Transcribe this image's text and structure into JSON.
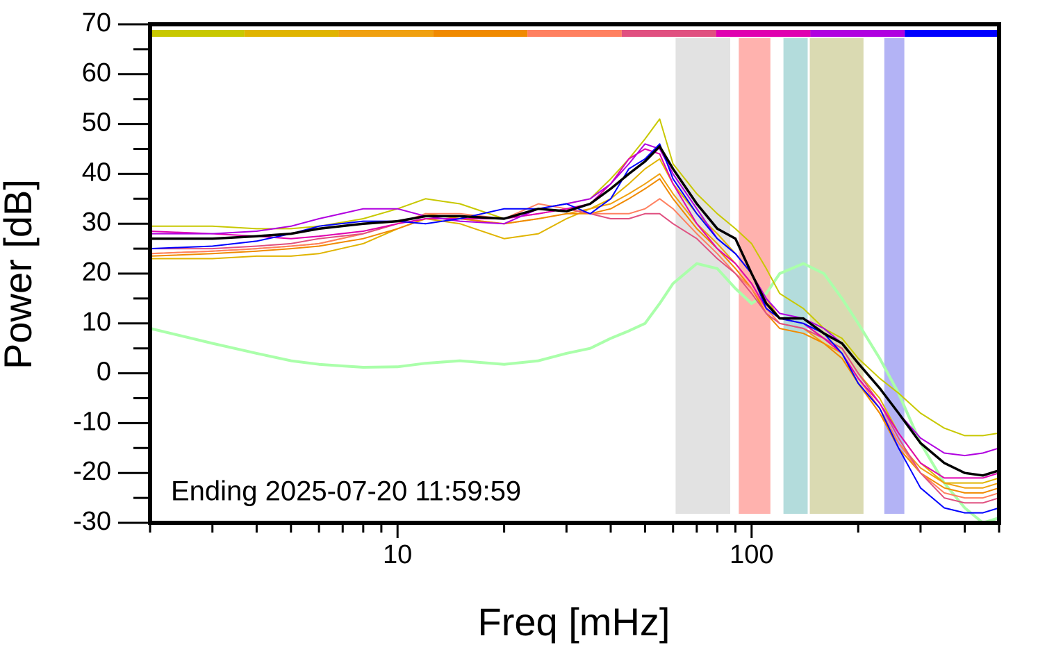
{
  "chart_data": {
    "type": "line",
    "xlabel": "Freq [mHz]",
    "ylabel": "Power [dB]",
    "annotation": "Ending 2025-07-20 11:59:59",
    "xscale": "log",
    "xlim": [
      2,
      500
    ],
    "ylim": [
      -30,
      70
    ],
    "xticks": [
      10,
      100
    ],
    "xminorticks": [
      2,
      3,
      4,
      5,
      6,
      7,
      8,
      9,
      20,
      30,
      40,
      50,
      60,
      70,
      80,
      90,
      200,
      300,
      400,
      500
    ],
    "yticks": [
      -30,
      -20,
      -10,
      0,
      10,
      20,
      30,
      40,
      50,
      60,
      70
    ],
    "yminorticks": [
      -25,
      -15,
      -5,
      5,
      15,
      25,
      35,
      45,
      55,
      65
    ],
    "top_bar_colors": [
      "#c8c800",
      "#e0b400",
      "#f0a010",
      "#f08a00",
      "#ff8060",
      "#e05080",
      "#e000b0",
      "#b000e0",
      "#0000ff"
    ],
    "bands": [
      {
        "range": [
          61,
          87
        ],
        "color": "#e2e2e2"
      },
      {
        "range": [
          92,
          113
        ],
        "color": "#ffb2ae"
      },
      {
        "range": [
          123,
          144
        ],
        "color": "#b3dcdc"
      },
      {
        "range": [
          146,
          207
        ],
        "color": "#dadab2"
      },
      {
        "range": [
          237,
          270
        ],
        "color": "#b3b3f5"
      }
    ],
    "x": [
      2,
      3,
      4,
      5,
      6,
      8,
      10,
      12,
      15,
      20,
      25,
      30,
      35,
      40,
      45,
      50,
      55,
      60,
      70,
      80,
      90,
      100,
      110,
      120,
      140,
      160,
      180,
      200,
      230,
      260,
      300,
      350,
      400,
      450,
      500
    ],
    "series": [
      {
        "color": "#aaffaa",
        "width": 4,
        "values": [
          9,
          6,
          4,
          2.5,
          1.8,
          1.2,
          1.3,
          2,
          2.5,
          1.8,
          2.5,
          4,
          5,
          7,
          8.5,
          10,
          14,
          18,
          22,
          21,
          17,
          14,
          16,
          20,
          22,
          20,
          15,
          10,
          3,
          -4,
          -14,
          -22,
          -27,
          -30,
          -29
        ]
      },
      {
        "color": "#c8c800",
        "width": 2,
        "values": [
          29.5,
          29.5,
          29,
          29,
          29.5,
          31,
          33,
          35,
          34,
          31,
          33,
          34,
          35,
          39,
          43,
          47,
          51,
          42,
          36,
          32,
          29,
          26,
          21,
          16,
          13,
          9,
          7,
          3,
          -1,
          -4,
          -8,
          -11,
          -12.5,
          -12.5,
          -12
        ]
      },
      {
        "color": "#e0b400",
        "width": 2,
        "values": [
          23,
          23,
          23.5,
          23.5,
          24,
          26,
          29,
          31,
          30,
          27,
          28,
          31,
          33,
          35,
          38,
          41,
          43,
          38,
          32,
          28,
          24,
          20,
          15,
          11,
          10,
          7,
          5,
          0,
          -5,
          -12,
          -18,
          -22,
          -22,
          -22,
          -21
        ]
      },
      {
        "color": "#f0a010",
        "width": 2,
        "values": [
          24,
          24.5,
          25,
          25.5,
          26,
          28,
          30,
          32,
          31,
          30,
          31,
          32,
          33,
          34,
          36,
          38,
          40,
          36,
          30,
          26,
          22,
          18,
          13,
          10,
          9,
          6,
          4,
          -2,
          -8,
          -14,
          -19,
          -22,
          -23,
          -23,
          -22
        ]
      },
      {
        "color": "#f08a00",
        "width": 2,
        "values": [
          23.5,
          24,
          24.5,
          25,
          25.5,
          27,
          29,
          31,
          31,
          30,
          31,
          32,
          32,
          33,
          35,
          37,
          39,
          35,
          29,
          25,
          21,
          17,
          12,
          9,
          8,
          6,
          3,
          -2,
          -8,
          -15,
          -20,
          -23,
          -24,
          -24,
          -23
        ]
      },
      {
        "color": "#ff8060",
        "width": 2,
        "values": [
          24,
          24.5,
          25,
          25.5,
          26,
          28,
          30,
          32,
          32,
          31,
          34,
          33,
          32,
          32,
          32,
          33,
          35,
          33,
          28,
          24,
          20,
          17,
          13,
          10,
          9,
          7,
          4,
          -1,
          -7,
          -14,
          -20,
          -24,
          -25,
          -25,
          -24
        ]
      },
      {
        "color": "#e05080",
        "width": 2,
        "values": [
          25,
          25,
          25.5,
          26,
          27,
          28,
          30,
          31,
          31,
          31,
          32,
          33,
          32,
          31,
          31,
          32,
          32,
          30,
          27,
          23,
          20,
          16,
          12,
          10,
          9,
          7,
          5,
          0,
          -6,
          -13,
          -20,
          -25,
          -26,
          -26,
          -25
        ]
      },
      {
        "color": "#e000b0",
        "width": 2,
        "values": [
          28.5,
          28,
          27.5,
          27,
          27.5,
          28.5,
          30,
          31,
          31,
          31,
          32,
          33,
          34,
          38,
          43,
          45,
          44,
          38,
          30,
          25,
          22,
          18,
          13,
          11,
          10,
          7,
          4,
          -1,
          -6,
          -12,
          -18,
          -21,
          -21,
          -21,
          -20
        ]
      },
      {
        "color": "#b000e0",
        "width": 2,
        "values": [
          28,
          28,
          28.5,
          29.5,
          31,
          33,
          33,
          31.5,
          30.5,
          30,
          33,
          34,
          35,
          38,
          42,
          46,
          45,
          40,
          33,
          27,
          24,
          20,
          15,
          12,
          11,
          9,
          6,
          2,
          -3,
          -8,
          -13,
          -16,
          -16.5,
          -16,
          -15
        ]
      },
      {
        "color": "#0000ff",
        "width": 2,
        "values": [
          25,
          25.5,
          26.5,
          28,
          29.5,
          30.5,
          30.5,
          30,
          31,
          33,
          33,
          34,
          32,
          35,
          41,
          43,
          46,
          39,
          32,
          27,
          24,
          20,
          13,
          11,
          10,
          8,
          4,
          -2,
          -7,
          -15,
          -23,
          -27,
          -28,
          -28,
          -27
        ]
      },
      {
        "color": "#000000",
        "width": 3.5,
        "values": [
          27,
          27,
          27.5,
          28,
          29,
          30,
          30.5,
          31.5,
          31.5,
          31,
          33,
          32.5,
          34,
          37,
          40,
          42.5,
          45.5,
          41,
          34,
          29,
          27,
          20,
          14,
          11,
          11,
          8,
          6,
          2,
          -3,
          -8,
          -14,
          -18,
          -20,
          -20.5,
          -19.5
        ]
      }
    ]
  }
}
